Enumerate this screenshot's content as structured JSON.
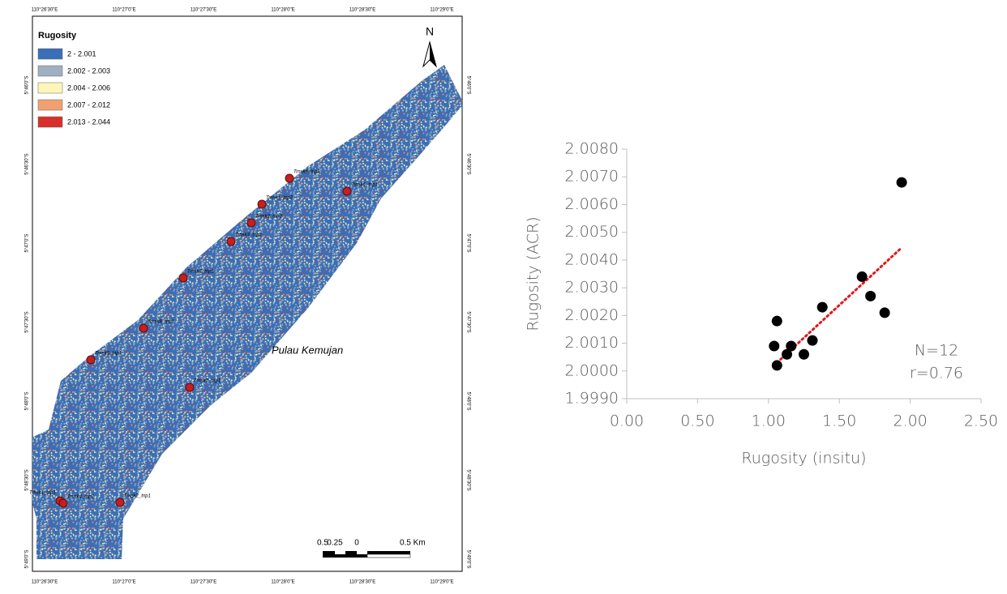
{
  "map": {
    "legend_title": "Rugosity",
    "legend": [
      {
        "label": "2 - 2.001",
        "color": "#3a6fb7"
      },
      {
        "label": "2.002 - 2.003",
        "color": "#9fb0c0"
      },
      {
        "label": "2.004 - 2.006",
        "color": "#fdf6b8"
      },
      {
        "label": "2.007 - 2.012",
        "color": "#f2a070"
      },
      {
        "label": "2.013 - 2.044",
        "color": "#d7302a"
      }
    ],
    "north": "N",
    "place_label": "Pulau Kemujan",
    "longitudes": [
      "110°26'30\"E",
      "110°27'0\"E",
      "110°27'30\"E",
      "110°28'0\"E",
      "110°28'30\"E",
      "110°29'0\"E"
    ],
    "latitudes": [
      "5°46'0\"S",
      "5°46'30\"S",
      "5°47'0\"S",
      "5°47'30\"S",
      "5°48'0\"S",
      "5°48'30\"S",
      "5°49'0\"S"
    ],
    "stations": [
      "Trnsk6_trip1",
      "Trnsk5_trip1",
      "Trnsk1_trip2",
      "Trnsk2_trip2",
      "Trnsk3_trip2",
      "Trnsk4_trip1",
      "Trnsk8_trip1",
      "Trnsk3_trip1",
      "Trnsk7_trip1",
      "Trnsk1_trip1",
      "Trnsk4_trip2",
      "Trnsk2_trip1"
    ],
    "scale_labels": [
      "0.5",
      "0.25",
      "0",
      "0.5 Km"
    ]
  },
  "chart_data": {
    "type": "scatter",
    "x_label": "Rugosity (insitu)",
    "y_label": "Rugosity (ACR)",
    "x": [
      1.94,
      1.66,
      1.72,
      1.82,
      1.38,
      1.06,
      1.04,
      1.16,
      1.31,
      1.13,
      1.25,
      1.06
    ],
    "values": [
      2.0068,
      2.0034,
      2.0027,
      2.0021,
      2.0023,
      2.0018,
      2.0009,
      2.0009,
      2.0011,
      2.0006,
      2.0006,
      2.0002
    ],
    "color": "#000000",
    "trendline": {
      "x": [
        1.06,
        1.93
      ],
      "values": [
        2.0003,
        2.0044
      ],
      "color": "#e0191b"
    },
    "xlim": [
      0,
      2.5
    ],
    "ylim": [
      1.999,
      2.008
    ],
    "xticks": [
      {
        "value": 0,
        "label": "0.00"
      },
      {
        "value": 0.5,
        "label": "0.50"
      },
      {
        "value": 1,
        "label": "1.00"
      },
      {
        "value": 1.5,
        "label": "1.50"
      },
      {
        "value": 2,
        "label": "2.00"
      },
      {
        "value": 2.5,
        "label": "2.50"
      }
    ],
    "yticks": [
      {
        "value": 1.999,
        "label": "1.9990"
      },
      {
        "value": 2,
        "label": "2.0000"
      },
      {
        "value": 2.001,
        "label": "2.0010"
      },
      {
        "value": 2.002,
        "label": "2.0020"
      },
      {
        "value": 2.003,
        "label": "2.0030"
      },
      {
        "value": 2.004,
        "label": "2.0040"
      },
      {
        "value": 2.005,
        "label": "2.0050"
      },
      {
        "value": 2.006,
        "label": "2.0060"
      },
      {
        "value": 2.007,
        "label": "2.0070"
      },
      {
        "value": 2.008,
        "label": "2.0080"
      }
    ],
    "annotations": [
      "N=12",
      "r=0.76"
    ],
    "grid": false
  }
}
